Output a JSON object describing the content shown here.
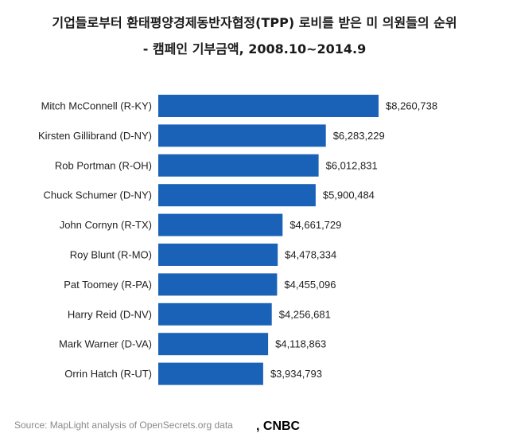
{
  "chart_data": {
    "type": "bar",
    "orientation": "horizontal",
    "title_line1": "기업들로부터 환태평양경제동반자협정(TPP) 로비를 받은 미 의원들의 순위",
    "title_line2": "- 캠페인 기부금액, 2008.10~2014.9",
    "categories": [
      "Mitch McConnell (R-KY)",
      "Kirsten Gillibrand (D-NY)",
      "Rob Portman (R-OH)",
      "Chuck Schumer (D-NY)",
      "John Cornyn (R-TX)",
      "Roy Blunt (R-MO)",
      "Pat Toomey (R-PA)",
      "Harry Reid (D-NV)",
      "Mark Warner (D-VA)",
      "Orrin Hatch (R-UT)"
    ],
    "values": [
      8260738,
      6283229,
      6012831,
      5900484,
      4661729,
      4478334,
      4455096,
      4256681,
      4118863,
      3934793
    ],
    "value_labels": [
      "$8,260,738",
      "$6,283,229",
      "$6,012,831",
      "$5,900,484",
      "$4,661,729",
      "$4,478,334",
      "$4,455,096",
      "$4,256,681",
      "$4,118,863",
      "$3,934,793"
    ],
    "bar_color": "#1a62b8",
    "grid": false,
    "source": "Source: MapLight analysis of OpenSecrets.org data",
    "credit": ", CNBC"
  }
}
